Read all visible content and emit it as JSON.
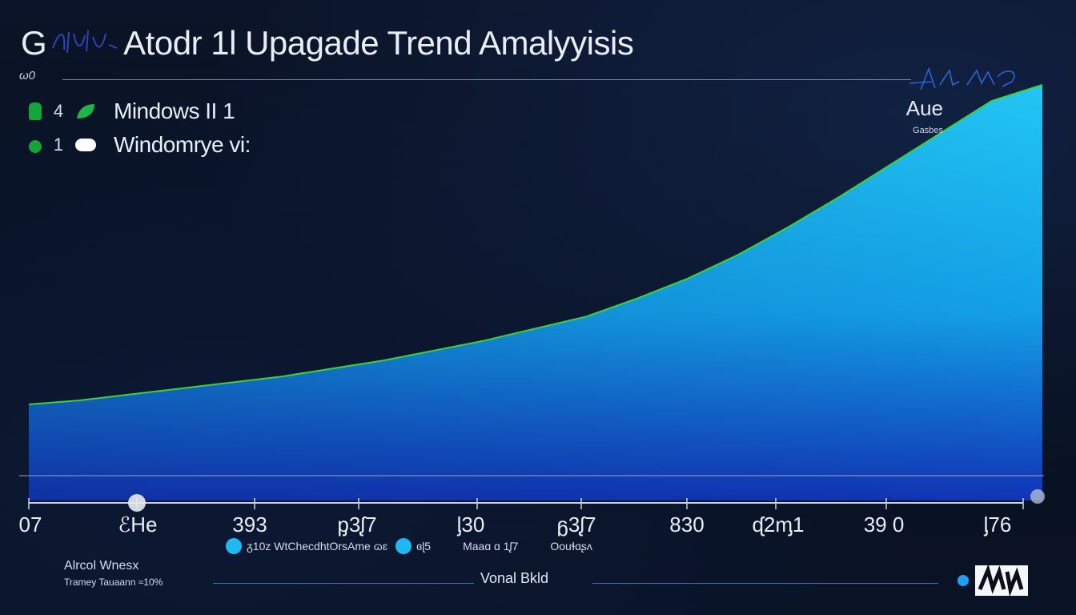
{
  "header": {
    "title_prefix": "G",
    "title_main": "Atodr 1l Upagade Trend Amalyyisis",
    "subtitle": "ω0"
  },
  "legend": [
    {
      "index": "4",
      "label": "Mindows II 1",
      "marker_color": "#12a63a",
      "swatch_color": "#1fb34a"
    },
    {
      "index": "1",
      "label": "Windomrye vi:",
      "marker_color": "#15a335",
      "swatch_color": "#ffffff"
    }
  ],
  "corner_note": {
    "main": "Aue",
    "sub": "Gasbes"
  },
  "footer_legend": {
    "item1_text": "ᵹ10z  WtChecdhtOrsAme ɷɛ",
    "item2_text": "ɞɭ5",
    "item3_text": "Maaɑ  ɑ 1ᶘ7",
    "item4_text": "Oouɬɑʂʌ"
  },
  "bottom": {
    "left_line1": "Alrcol Wnesx",
    "left_line2": "Tramey Tauaann ≈10%",
    "center": "Vonal  Bkld"
  },
  "colors": {
    "area_top": "#1fc0f2",
    "area_bottom": "#1133b5",
    "outline": "#3bd23a",
    "background": "#0a1020"
  },
  "chart_data": {
    "type": "area",
    "title": "Atodr 1l Upagade Trend Amalyyisis",
    "x_tick_labels": [
      "07",
      "ℰHe",
      "393",
      "ᶈ3ᶘ7",
      "ᶅ30",
      "ᵷ3ᶘ7",
      "830",
      "ᶑ2ᶆ1",
      "39 0",
      "ᶅ76"
    ],
    "series": [
      {
        "name": "Mindows II 1",
        "x": [
          0,
          0.05,
          0.1,
          0.15,
          0.2,
          0.25,
          0.3,
          0.35,
          0.4,
          0.45,
          0.5,
          0.55,
          0.6,
          0.65,
          0.7,
          0.75,
          0.8,
          0.85,
          0.9,
          0.95,
          1.0
        ],
        "values": [
          0.2,
          0.21,
          0.225,
          0.24,
          0.255,
          0.27,
          0.29,
          0.31,
          0.335,
          0.36,
          0.39,
          0.42,
          0.465,
          0.515,
          0.575,
          0.645,
          0.72,
          0.8,
          0.88,
          0.96,
          1.0
        ]
      }
    ],
    "ylim": [
      0,
      1
    ],
    "grid": false,
    "legend_position": "top-left"
  }
}
